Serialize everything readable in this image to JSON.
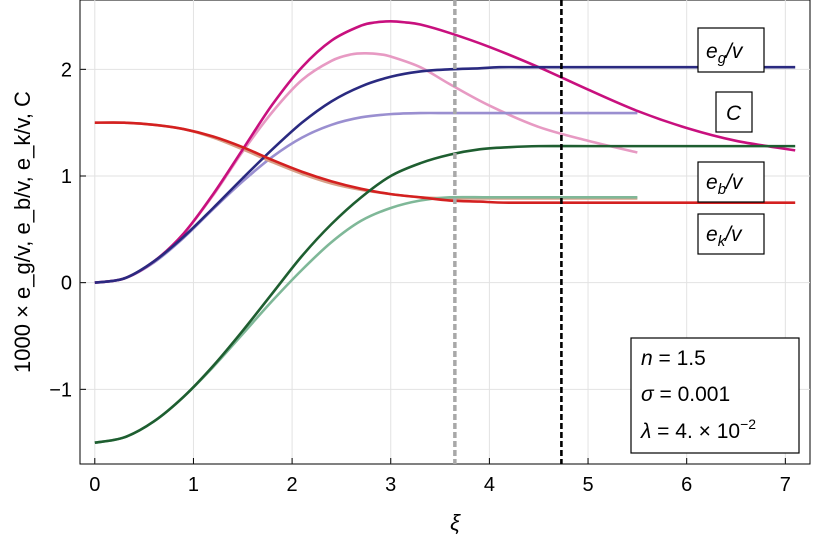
{
  "chart_data": {
    "type": "line",
    "title": "",
    "xlabel": "ξ",
    "ylabel": "1000 × e_g/v, e_b/v, e_k/v, C",
    "xlim": [
      -0.15,
      7.25
    ],
    "ylim": [
      -1.7,
      2.65
    ],
    "x_ticks": [
      0,
      1,
      2,
      3,
      4,
      5,
      6,
      7
    ],
    "x_tick_labels": [
      "0",
      "1",
      "2",
      "3",
      "4",
      "5",
      "6",
      "7"
    ],
    "y_ticks": [
      -1,
      0,
      1,
      2
    ],
    "y_tick_labels": [
      "−1",
      "0",
      "1",
      "2"
    ],
    "grid": true,
    "series": [
      {
        "key": "C",
        "name": "",
        "color": "#c8107e",
        "width": 2.6,
        "x": [
          0,
          0.3,
          0.6,
          0.9,
          1.2,
          1.5,
          1.8,
          2.1,
          2.4,
          2.7,
          2.85,
          3.0,
          3.15,
          3.3,
          3.6,
          4.0,
          4.5,
          5.0,
          5.5,
          6.0,
          6.5,
          7.1
        ],
        "y": [
          0,
          0.04,
          0.2,
          0.46,
          0.83,
          1.25,
          1.67,
          2.02,
          2.27,
          2.41,
          2.44,
          2.45,
          2.44,
          2.42,
          2.34,
          2.21,
          2.02,
          1.81,
          1.61,
          1.45,
          1.33,
          1.24
        ]
      },
      {
        "key": "C_light",
        "name": "",
        "color": "#e79ac3",
        "width": 2.6,
        "x": [
          0,
          0.3,
          0.6,
          0.9,
          1.2,
          1.5,
          1.8,
          2.1,
          2.4,
          2.6,
          2.75,
          2.9,
          3.0,
          3.3,
          3.6,
          4.0,
          4.5,
          5.0,
          5.5
        ],
        "y": [
          0,
          0.04,
          0.2,
          0.46,
          0.82,
          1.23,
          1.6,
          1.9,
          2.08,
          2.14,
          2.15,
          2.14,
          2.12,
          2.02,
          1.86,
          1.66,
          1.46,
          1.33,
          1.22
        ]
      },
      {
        "key": "eg",
        "name": "",
        "color": "#2a2a80",
        "width": 2.6,
        "x": [
          0,
          0.3,
          0.6,
          0.9,
          1.2,
          1.5,
          1.8,
          2.1,
          2.4,
          2.7,
          3.0,
          3.3,
          3.6,
          3.9,
          4.1,
          4.5,
          5.0,
          6.0,
          7.1
        ],
        "y": [
          0,
          0.04,
          0.2,
          0.43,
          0.7,
          0.98,
          1.25,
          1.5,
          1.7,
          1.84,
          1.93,
          1.98,
          2.0,
          2.01,
          2.02,
          2.02,
          2.02,
          2.02,
          2.02
        ]
      },
      {
        "key": "eg_light",
        "name": "",
        "color": "#9a8fd0",
        "width": 2.6,
        "x": [
          0,
          0.3,
          0.6,
          0.9,
          1.2,
          1.5,
          1.8,
          2.1,
          2.4,
          2.7,
          3.0,
          3.3,
          3.6,
          4.0,
          4.5,
          5.5
        ],
        "y": [
          0,
          0.04,
          0.19,
          0.42,
          0.69,
          0.95,
          1.18,
          1.36,
          1.48,
          1.55,
          1.58,
          1.59,
          1.59,
          1.59,
          1.59,
          1.59
        ]
      },
      {
        "key": "ek",
        "name": "",
        "color": "#d42020",
        "width": 2.6,
        "x": [
          0,
          0.3,
          0.6,
          0.9,
          1.2,
          1.5,
          1.8,
          2.1,
          2.4,
          2.7,
          3.0,
          3.3,
          3.6,
          3.9,
          4.2,
          5.0,
          6.0,
          7.1
        ],
        "y": [
          1.5,
          1.5,
          1.48,
          1.44,
          1.37,
          1.27,
          1.15,
          1.04,
          0.95,
          0.88,
          0.83,
          0.8,
          0.77,
          0.76,
          0.75,
          0.75,
          0.75,
          0.75
        ]
      },
      {
        "key": "ek_light",
        "name": "",
        "color": "#d8a088",
        "width": 2.6,
        "x": [
          0,
          0.3,
          0.6,
          0.9,
          1.2,
          1.5,
          1.8,
          2.1,
          2.4,
          2.7,
          3.0,
          3.3,
          3.6,
          4.0,
          4.5,
          5.5
        ],
        "y": [
          1.5,
          1.5,
          1.48,
          1.44,
          1.36,
          1.25,
          1.13,
          1.02,
          0.93,
          0.87,
          0.83,
          0.8,
          0.79,
          0.79,
          0.79,
          0.79
        ]
      },
      {
        "key": "eb",
        "name": "",
        "color": "#1e5e30",
        "width": 2.6,
        "x": [
          0,
          0.3,
          0.6,
          0.9,
          1.2,
          1.5,
          1.8,
          2.1,
          2.4,
          2.7,
          3.0,
          3.3,
          3.6,
          3.9,
          4.2,
          4.5,
          5.0,
          6.0,
          7.1
        ],
        "y": [
          -1.5,
          -1.45,
          -1.3,
          -1.07,
          -0.78,
          -0.45,
          -0.1,
          0.25,
          0.55,
          0.8,
          1.0,
          1.12,
          1.2,
          1.25,
          1.27,
          1.28,
          1.28,
          1.28,
          1.28
        ]
      },
      {
        "key": "eb_light",
        "name": "",
        "color": "#7fb898",
        "width": 2.6,
        "x": [
          0,
          0.3,
          0.6,
          0.9,
          1.2,
          1.5,
          1.8,
          2.1,
          2.4,
          2.7,
          3.0,
          3.3,
          3.6,
          4.0,
          4.5,
          5.5
        ],
        "y": [
          -1.5,
          -1.45,
          -1.3,
          -1.07,
          -0.79,
          -0.48,
          -0.17,
          0.12,
          0.38,
          0.58,
          0.7,
          0.77,
          0.8,
          0.8,
          0.8,
          0.8
        ]
      }
    ],
    "vlines": [
      {
        "x": 3.65,
        "color": "#a8a8a8",
        "dash": "dashed",
        "width": 3.5
      },
      {
        "x": 4.73,
        "color": "#000000",
        "dash": "dashed",
        "width": 2.6
      }
    ],
    "annotations": [
      {
        "key": "label-eg",
        "base": "e",
        "sub": "g",
        "tail": "/v"
      },
      {
        "key": "label-C",
        "base": "C",
        "sub": "",
        "tail": ""
      },
      {
        "key": "label-eb",
        "base": "e",
        "sub": "b",
        "tail": "/v"
      },
      {
        "key": "label-ek",
        "base": "e",
        "sub": "k",
        "tail": "/v"
      }
    ],
    "parameters": {
      "n_label": "n",
      "n_value": "1.5",
      "sigma_label": "σ",
      "sigma_value": "0.001",
      "lambda_label": "λ",
      "lambda_value": "4. × 10",
      "lambda_exp": "−2"
    }
  }
}
